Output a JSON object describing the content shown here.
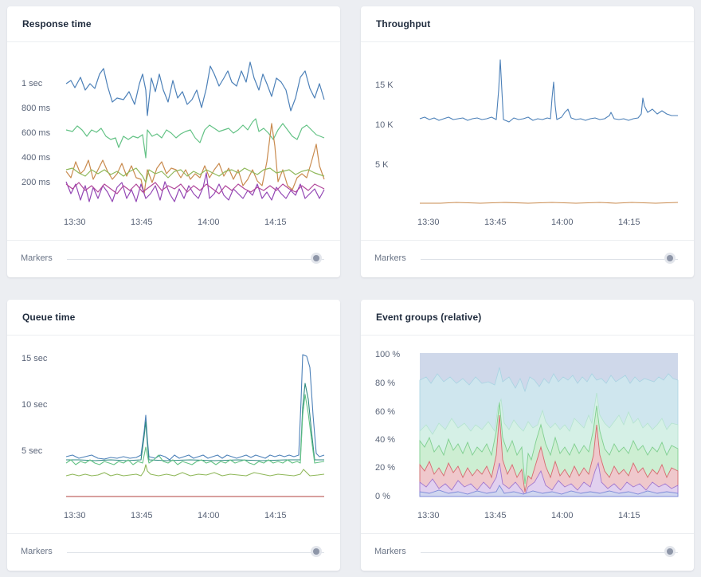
{
  "colors": {
    "blue": "#4c80b8",
    "green": "#63c285",
    "orange": "#c98b4f",
    "olive": "#8fb85a",
    "purple": "#9347b5",
    "magenta": "#b1479b",
    "darkred": "#b0413e",
    "teal": "#2f8a80"
  },
  "markers": {
    "label": "Markers"
  },
  "cards": {
    "response": {
      "title": "Response time",
      "y_ticks": [
        "1 sec",
        "800 ms",
        "600 ms",
        "400 ms",
        "200 ms"
      ],
      "x_ticks": [
        "13:30",
        "13:45",
        "14:00",
        "14:15"
      ]
    },
    "throughput": {
      "title": "Throughput",
      "y_ticks": [
        "15 K",
        "10 K",
        "5 K"
      ],
      "x_ticks": [
        "13:30",
        "13:45",
        "14:00",
        "14:15"
      ]
    },
    "queue": {
      "title": "Queue time",
      "y_ticks": [
        "15 sec",
        "10 sec",
        "5 sec"
      ],
      "x_ticks": [
        "13:30",
        "13:45",
        "14:00",
        "14:15"
      ]
    },
    "events": {
      "title": "Event groups (relative)",
      "y_ticks": [
        "100 %",
        "80 %",
        "60 %",
        "40 %",
        "20 %",
        "0 %"
      ],
      "x_ticks": [
        "13:30",
        "13:45",
        "14:00",
        "14:15"
      ]
    }
  }
}
